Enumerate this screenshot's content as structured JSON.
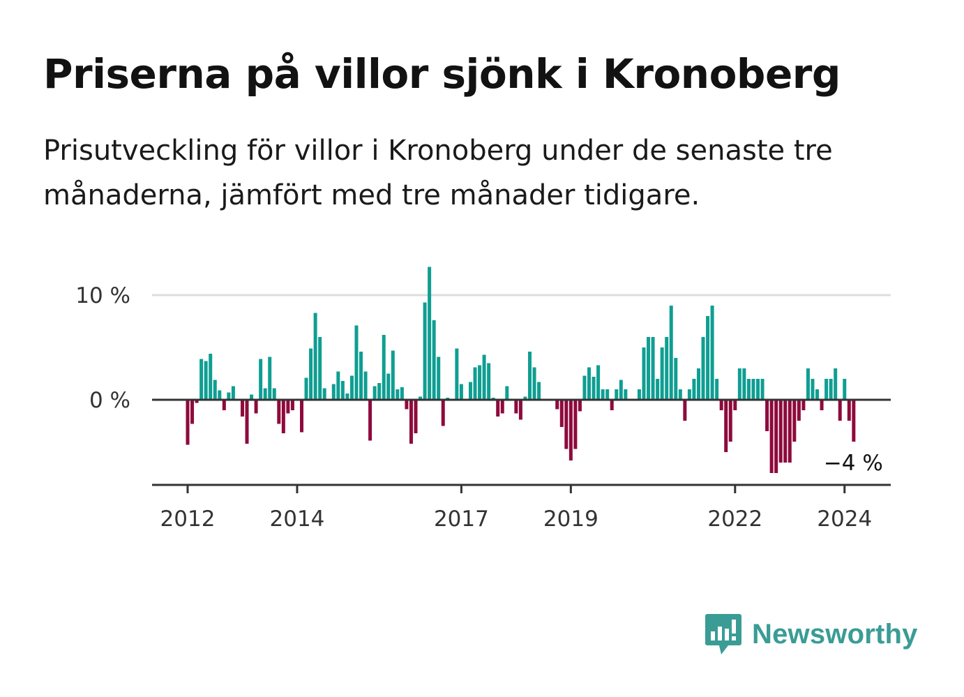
{
  "title": "Priserna på villor sjönk i Kronoberg",
  "subtitle": "Prisutveckling för villor i Kronoberg under de senaste tre månaderna, jämfört med tre månader tidigare.",
  "brand": {
    "name": "Newsworthy",
    "icon": "newsworthy-logo-icon",
    "color": "#3a9c95"
  },
  "colors": {
    "positive": "#0f9e92",
    "negative": "#8e0a3c",
    "axis": "#333333",
    "grid": "#dddddd"
  },
  "chart_data": {
    "type": "bar",
    "title": "Priserna på villor sjönk i Kronoberg",
    "xlabel": "",
    "ylabel": "",
    "ylim": [
      -8,
      13
    ],
    "grid": true,
    "y_ticks": [
      {
        "value": 0,
        "label": "0 %"
      },
      {
        "value": 10,
        "label": "10 %"
      }
    ],
    "x_ticks": [
      {
        "month": 0,
        "label": "2012"
      },
      {
        "month": 24,
        "label": "2014"
      },
      {
        "month": 60,
        "label": "2017"
      },
      {
        "month": 84,
        "label": "2019"
      },
      {
        "month": 120,
        "label": "2022"
      },
      {
        "month": 144,
        "label": "2024"
      }
    ],
    "start": "2012-01",
    "end": "2024-03",
    "last_value_label": "−4 %",
    "values": [
      -4.3,
      -2.3,
      -0.3,
      3.9,
      3.7,
      4.4,
      1.9,
      0.9,
      -1.0,
      0.7,
      1.3,
      0.0,
      -1.6,
      -4.2,
      0.5,
      -1.3,
      3.9,
      1.1,
      4.1,
      1.1,
      -2.3,
      -3.2,
      -1.3,
      -1.0,
      0.0,
      -3.1,
      2.1,
      4.9,
      8.3,
      6.0,
      1.1,
      0.0,
      1.5,
      2.7,
      1.8,
      0.6,
      2.3,
      7.1,
      4.6,
      2.7,
      -3.9,
      1.3,
      1.6,
      6.2,
      2.5,
      4.7,
      1.0,
      1.2,
      -0.9,
      -4.2,
      -3.2,
      0.3,
      9.3,
      12.7,
      7.6,
      4.1,
      -2.5,
      0.2,
      -0.1,
      4.9,
      1.5,
      0.0,
      1.7,
      3.1,
      3.3,
      4.3,
      3.5,
      0.2,
      -1.6,
      -1.3,
      1.3,
      0.0,
      -1.3,
      -1.9,
      0.3,
      4.6,
      3.1,
      1.7,
      0.1,
      0.0,
      0.0,
      -0.9,
      -2.6,
      -4.7,
      -5.8,
      -4.7,
      -1.1,
      2.3,
      3.1,
      2.2,
      3.3,
      1.0,
      1.0,
      -1.0,
      1.0,
      1.9,
      1.0,
      0.0,
      0.0,
      1.0,
      5.0,
      6.0,
      6.0,
      2.0,
      5.0,
      6.0,
      9.0,
      4.0,
      1.0,
      -2.0,
      1.0,
      2.0,
      3.0,
      6.0,
      8.0,
      9.0,
      2.0,
      -1.0,
      -5.0,
      -4.0,
      -1.0,
      3.0,
      3.0,
      2.0,
      2.0,
      2.0,
      2.0,
      -3.0,
      -7.0,
      -7.0,
      -6.0,
      -6.0,
      -6.0,
      -4.0,
      -2.0,
      -1.0,
      3.0,
      2.0,
      1.0,
      -1.0,
      2.0,
      2.0,
      3.0,
      -2.0,
      2.0,
      -2.0,
      -4.0
    ]
  }
}
